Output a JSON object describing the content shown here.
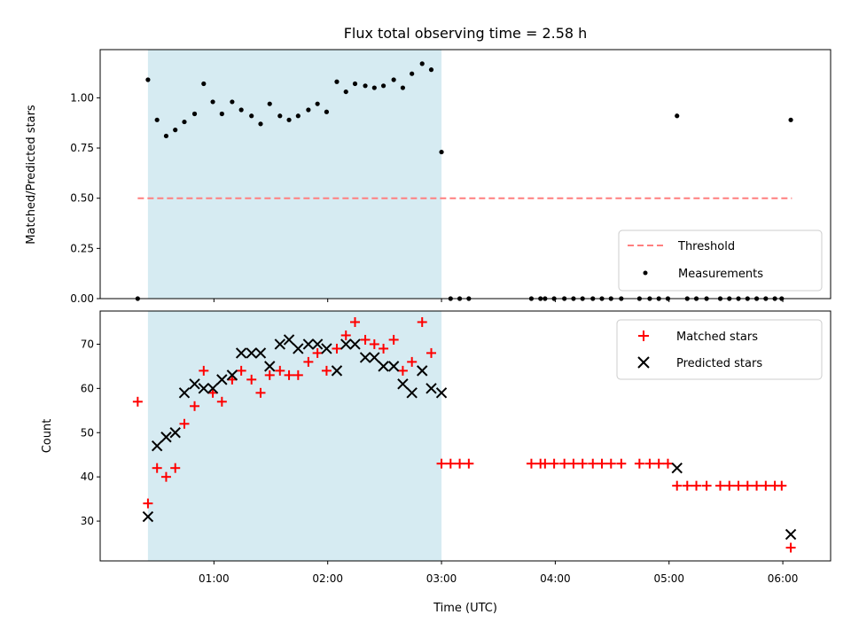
{
  "chart_data": [
    {
      "type": "scatter",
      "title": "Flux total observing time = 2.58 h",
      "ylabel": "Matched/Predicted stars",
      "xlim_hours": [
        0.0,
        6.42
      ],
      "ylim": [
        0.0,
        1.24
      ],
      "x_tick_labels": [
        "01:00",
        "02:00",
        "03:00",
        "04:00",
        "05:00",
        "06:00"
      ],
      "y_ticks": [
        0.0,
        0.25,
        0.5,
        0.75,
        1.0
      ],
      "y_tick_labels": [
        "0.00",
        "0.25",
        "0.50",
        "0.75",
        "1.00"
      ],
      "highlight_span_hours": [
        0.42,
        3.0
      ],
      "highlight_color": "#add8e6",
      "threshold": {
        "name": "Threshold",
        "value": 0.5,
        "x_range_hours": [
          0.33,
          6.08
        ],
        "color": "#ff7f7f"
      },
      "series": [
        {
          "name": "Measurements",
          "color": "#000000",
          "points_hours": [
            [
              0.33,
              0.0
            ],
            [
              0.42,
              1.09
            ],
            [
              0.5,
              0.89
            ],
            [
              0.58,
              0.81
            ],
            [
              0.66,
              0.84
            ],
            [
              0.74,
              0.88
            ],
            [
              0.83,
              0.92
            ],
            [
              0.91,
              1.07
            ],
            [
              0.99,
              0.98
            ],
            [
              1.07,
              0.92
            ],
            [
              1.16,
              0.98
            ],
            [
              1.24,
              0.94
            ],
            [
              1.33,
              0.91
            ],
            [
              1.41,
              0.87
            ],
            [
              1.49,
              0.97
            ],
            [
              1.58,
              0.91
            ],
            [
              1.66,
              0.89
            ],
            [
              1.74,
              0.91
            ],
            [
              1.83,
              0.94
            ],
            [
              1.91,
              0.97
            ],
            [
              1.99,
              0.93
            ],
            [
              2.08,
              1.08
            ],
            [
              2.16,
              1.03
            ],
            [
              2.24,
              1.07
            ],
            [
              2.33,
              1.06
            ],
            [
              2.41,
              1.05
            ],
            [
              2.49,
              1.06
            ],
            [
              2.58,
              1.09
            ],
            [
              2.66,
              1.05
            ],
            [
              2.74,
              1.12
            ],
            [
              2.83,
              1.17
            ],
            [
              2.91,
              1.14
            ],
            [
              3.0,
              0.73
            ],
            [
              3.08,
              0.0
            ],
            [
              3.16,
              0.0
            ],
            [
              3.24,
              0.0
            ],
            [
              3.79,
              0.0
            ],
            [
              3.87,
              0.0
            ],
            [
              3.91,
              0.0
            ],
            [
              3.99,
              0.0
            ],
            [
              4.08,
              0.0
            ],
            [
              4.16,
              0.0
            ],
            [
              4.24,
              0.0
            ],
            [
              4.33,
              0.0
            ],
            [
              4.41,
              0.0
            ],
            [
              4.49,
              0.0
            ],
            [
              4.58,
              0.0
            ],
            [
              4.74,
              0.0
            ],
            [
              4.83,
              0.0
            ],
            [
              4.91,
              0.0
            ],
            [
              4.99,
              0.0
            ],
            [
              5.07,
              0.91
            ],
            [
              5.16,
              0.0
            ],
            [
              5.24,
              0.0
            ],
            [
              5.33,
              0.0
            ],
            [
              5.45,
              0.0
            ],
            [
              5.53,
              0.0
            ],
            [
              5.61,
              0.0
            ],
            [
              5.69,
              0.0
            ],
            [
              5.77,
              0.0
            ],
            [
              5.85,
              0.0
            ],
            [
              5.93,
              0.0
            ],
            [
              5.99,
              0.0
            ],
            [
              6.07,
              0.89
            ]
          ]
        }
      ],
      "legend": {
        "position": "lower right",
        "entries": [
          "Threshold",
          "Measurements"
        ]
      }
    },
    {
      "type": "scatter",
      "ylabel": "Count",
      "xlabel": "Time (UTC)",
      "xlim_hours": [
        0.0,
        6.42
      ],
      "ylim": [
        21.0,
        77.5
      ],
      "x_tick_labels": [
        "01:00",
        "02:00",
        "03:00",
        "04:00",
        "05:00",
        "06:00"
      ],
      "y_ticks": [
        30,
        40,
        50,
        60,
        70
      ],
      "y_tick_labels": [
        "30",
        "40",
        "50",
        "60",
        "70"
      ],
      "highlight_span_hours": [
        0.42,
        3.0
      ],
      "highlight_color": "#add8e6",
      "series": [
        {
          "name": "Matched stars",
          "marker": "+",
          "color": "#ff0000",
          "points_hours": [
            [
              0.33,
              57
            ],
            [
              0.42,
              34
            ],
            [
              0.5,
              42
            ],
            [
              0.58,
              40
            ],
            [
              0.66,
              42
            ],
            [
              0.74,
              52
            ],
            [
              0.83,
              56
            ],
            [
              0.91,
              64
            ],
            [
              0.99,
              59
            ],
            [
              1.07,
              57
            ],
            [
              1.16,
              62
            ],
            [
              1.24,
              64
            ],
            [
              1.33,
              62
            ],
            [
              1.41,
              59
            ],
            [
              1.49,
              63
            ],
            [
              1.58,
              64
            ],
            [
              1.66,
              63
            ],
            [
              1.74,
              63
            ],
            [
              1.83,
              66
            ],
            [
              1.91,
              68
            ],
            [
              1.99,
              64
            ],
            [
              2.08,
              69
            ],
            [
              2.16,
              72
            ],
            [
              2.24,
              75
            ],
            [
              2.33,
              71
            ],
            [
              2.41,
              70
            ],
            [
              2.49,
              69
            ],
            [
              2.58,
              71
            ],
            [
              2.66,
              64
            ],
            [
              2.74,
              66
            ],
            [
              2.83,
              75
            ],
            [
              2.91,
              68
            ],
            [
              3.0,
              43
            ],
            [
              3.08,
              43
            ],
            [
              3.16,
              43
            ],
            [
              3.24,
              43
            ],
            [
              3.79,
              43
            ],
            [
              3.87,
              43
            ],
            [
              3.91,
              43
            ],
            [
              3.99,
              43
            ],
            [
              4.08,
              43
            ],
            [
              4.16,
              43
            ],
            [
              4.24,
              43
            ],
            [
              4.33,
              43
            ],
            [
              4.41,
              43
            ],
            [
              4.49,
              43
            ],
            [
              4.58,
              43
            ],
            [
              4.74,
              43
            ],
            [
              4.83,
              43
            ],
            [
              4.91,
              43
            ],
            [
              4.99,
              43
            ],
            [
              5.07,
              38
            ],
            [
              5.16,
              38
            ],
            [
              5.24,
              38
            ],
            [
              5.33,
              38
            ],
            [
              5.45,
              38
            ],
            [
              5.53,
              38
            ],
            [
              5.61,
              38
            ],
            [
              5.69,
              38
            ],
            [
              5.77,
              38
            ],
            [
              5.85,
              38
            ],
            [
              5.93,
              38
            ],
            [
              5.99,
              38
            ],
            [
              6.07,
              24
            ]
          ]
        },
        {
          "name": "Predicted stars",
          "marker": "x",
          "color": "#000000",
          "points_hours": [
            [
              0.42,
              31
            ],
            [
              0.5,
              47
            ],
            [
              0.58,
              49
            ],
            [
              0.66,
              50
            ],
            [
              0.74,
              59
            ],
            [
              0.83,
              61
            ],
            [
              0.91,
              60
            ],
            [
              0.99,
              60
            ],
            [
              1.07,
              62
            ],
            [
              1.16,
              63
            ],
            [
              1.24,
              68
            ],
            [
              1.33,
              68
            ],
            [
              1.41,
              68
            ],
            [
              1.49,
              65
            ],
            [
              1.58,
              70
            ],
            [
              1.66,
              71
            ],
            [
              1.74,
              69
            ],
            [
              1.83,
              70
            ],
            [
              1.91,
              70
            ],
            [
              1.99,
              69
            ],
            [
              2.08,
              64
            ],
            [
              2.16,
              70
            ],
            [
              2.24,
              70
            ],
            [
              2.33,
              67
            ],
            [
              2.41,
              67
            ],
            [
              2.49,
              65
            ],
            [
              2.58,
              65
            ],
            [
              2.66,
              61
            ],
            [
              2.74,
              59
            ],
            [
              2.83,
              64
            ],
            [
              2.91,
              60
            ],
            [
              3.0,
              59
            ],
            [
              5.07,
              42
            ],
            [
              6.07,
              27
            ]
          ]
        }
      ],
      "legend": {
        "position": "upper right",
        "entries": [
          "Matched stars",
          "Predicted stars"
        ]
      }
    }
  ]
}
